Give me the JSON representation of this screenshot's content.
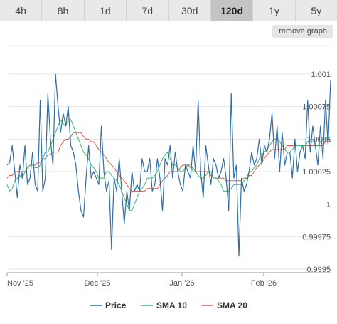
{
  "tabs": [
    {
      "label": "4h",
      "active": false
    },
    {
      "label": "8h",
      "active": false
    },
    {
      "label": "1d",
      "active": false
    },
    {
      "label": "7d",
      "active": false
    },
    {
      "label": "30d",
      "active": false
    },
    {
      "label": "120d",
      "active": true
    },
    {
      "label": "1y",
      "active": false
    },
    {
      "label": "5y",
      "active": false
    }
  ],
  "remove_graph_label": "remove graph",
  "chart_data": {
    "type": "line",
    "x_ticks": [
      "Nov '25",
      "Dec '25",
      "Jan '26",
      "Feb '26"
    ],
    "y_ticks": [
      "1.001",
      "1.00075",
      "1.0005",
      "1.00025",
      "1",
      "0.99975",
      "0.9995"
    ],
    "ylim": [
      0.9995,
      1.001
    ],
    "grid": true,
    "legend_position": "bottom",
    "series": [
      {
        "name": "Price",
        "color": "#2f6ea6",
        "values": [
          1.0003,
          1.00032,
          1.00045,
          1.00025,
          1.00005,
          1.0003,
          1.0002,
          1.00045,
          1.00015,
          1.0002,
          1.0004,
          1.00015,
          1.0001,
          1.0008,
          1.0001,
          1.0002,
          1.00085,
          1.0005,
          1.0003,
          1.001,
          1.00075,
          1.00055,
          1.0007,
          1.0006,
          1.00075,
          1.00045,
          1.0004,
          1.0003,
          1.0001,
          0.99995,
          0.9999,
          1.0002,
          1.00045,
          1.0002,
          1.00025,
          1.0002,
          1.00015,
          1.0006,
          1.00025,
          1.0001,
          1.00018,
          0.99965,
          1.0002,
          1.0001,
          1.00035,
          1.0001,
          0.99985,
          1.0001,
          0.99995,
          1.00025,
          1.0001,
          1.00015,
          1.0001,
          1.00035,
          1.00025,
          1.00025,
          1.00035,
          1.0001,
          1.00015,
          1.00035,
          1.0002,
          0.99995,
          1.00035,
          1.0003,
          1.00045,
          1.0002,
          1.0004,
          1.00025,
          1.00015,
          1.0001,
          1.0003,
          1.00025,
          1.0002,
          1.00045,
          1.00025,
          1.0008,
          1.00025,
          1.00005,
          1.00045,
          1.0003,
          1.00015,
          1.00035,
          1.0003,
          1.0002,
          1.00025,
          1.00035,
          1.0002,
          0.99995,
          1.00085,
          1.0002,
          1.0003,
          0.9996,
          1.0002,
          1.0001,
          1.00015,
          1.00025,
          1.0004,
          1.0003,
          1.00035,
          1.0005,
          1.0003,
          1.00045,
          1.0004,
          1.0005,
          1.0007,
          1.00035,
          1.0006,
          1.00025,
          1.00055,
          1.0003,
          1.0004,
          1.0004,
          1.0002,
          1.0005,
          1.00025,
          1.0004,
          1.00045,
          1.00035,
          1.0008,
          1.0004,
          1.0006,
          1.00045,
          1.0003,
          1.0006,
          1.00035,
          1.0008,
          1.00045,
          1.00095
        ]
      },
      {
        "name": "SMA 10",
        "color": "#3cb86a",
        "values": [
          1.00015,
          1.0001,
          1.00012,
          1.00018,
          1.0002,
          1.00022,
          1.0002,
          1.00025,
          1.00028,
          1.0003,
          1.0003,
          1.00028,
          1.00028,
          1.0003,
          1.00035,
          1.0004,
          1.0004,
          1.00045,
          1.0005,
          1.00055,
          1.0006,
          1.00065,
          1.00062,
          1.0006,
          1.00065,
          1.00065,
          1.0006,
          1.00055,
          1.0005,
          1.00045,
          1.0004,
          1.00038,
          1.00035,
          1.0003,
          1.00028,
          1.00025,
          1.0002,
          1.0002,
          1.0002,
          1.00025,
          1.00025,
          1.00022,
          1.0002,
          1.00018,
          1.00015,
          1.0001,
          1.00005,
          1.0,
          0.99995,
          0.99995,
          1.0,
          1.00005,
          1.0001,
          1.00012,
          1.00015,
          1.0002,
          1.0002,
          1.0002,
          1.00022,
          1.00025,
          1.0003,
          1.00035,
          1.00038,
          1.0004,
          1.00035,
          1.0003,
          1.0003,
          1.00028,
          1.00025,
          1.00025,
          1.00028,
          1.0003,
          1.0003,
          1.00025,
          1.00025,
          1.00022,
          1.0002,
          1.0002,
          1.00022,
          1.00025,
          1.00025,
          1.0002,
          1.0002,
          1.00018,
          1.00015,
          1.0001,
          1.0001,
          1.0001,
          1.00012,
          1.00015,
          1.00015,
          1.00015,
          1.00015,
          1.00018,
          1.0002,
          1.00025,
          1.00025,
          1.00028,
          1.0003,
          1.00035,
          1.00038,
          1.0004,
          1.00042,
          1.00045,
          1.00048,
          1.0005,
          1.0005,
          1.00048,
          1.00045,
          1.00042,
          1.0004,
          1.0004,
          1.00042,
          1.00045,
          1.00045,
          1.00045,
          1.00045,
          1.00045,
          1.00048,
          1.0005,
          1.0005,
          1.00045,
          1.00045,
          1.00048,
          1.0005,
          1.0005,
          1.0005,
          1.00052
        ]
      },
      {
        "name": "SMA 20",
        "color": "#e25a4e",
        "values": [
          1.0002,
          1.00022,
          1.00022,
          1.00025,
          1.00025,
          1.00025,
          1.00025,
          1.00025,
          1.00028,
          1.0003,
          1.0003,
          1.0003,
          1.00032,
          1.00032,
          1.00035,
          1.00035,
          1.00038,
          1.00038,
          1.0004,
          1.0004,
          1.0004,
          1.00045,
          1.00048,
          1.0005,
          1.0005,
          1.00052,
          1.00055,
          1.00055,
          1.00055,
          1.00055,
          1.00052,
          1.0005,
          1.0005,
          1.00048,
          1.00048,
          1.00045,
          1.00042,
          1.0004,
          1.00038,
          1.00035,
          1.00032,
          1.0003,
          1.00028,
          1.00025,
          1.00022,
          1.0002,
          1.00018,
          1.00015,
          1.00012,
          1.0001,
          1.0001,
          1.0001,
          1.0001,
          1.0001,
          1.0001,
          1.00012,
          1.00012,
          1.00012,
          1.00012,
          1.00012,
          1.00015,
          1.00018,
          1.0002,
          1.00022,
          1.00025,
          1.00025,
          1.00025,
          1.00025,
          1.00028,
          1.0003,
          1.0003,
          1.0003,
          1.00028,
          1.00028,
          1.00025,
          1.00025,
          1.00025,
          1.00025,
          1.00025,
          1.00025,
          1.00022,
          1.0002,
          1.0002,
          1.0002,
          1.0002,
          1.0002,
          1.00018,
          1.00018,
          1.00018,
          1.00018,
          1.00018,
          1.00018,
          1.00018,
          1.0002,
          1.0002,
          1.00022,
          1.00022,
          1.00025,
          1.00028,
          1.0003,
          1.00032,
          1.00035,
          1.00038,
          1.0004,
          1.00042,
          1.00042,
          1.00042,
          1.00042,
          1.00042,
          1.00042,
          1.00045,
          1.00045,
          1.00045,
          1.00045,
          1.00045,
          1.00045,
          1.00045,
          1.00045,
          1.00045,
          1.00045,
          1.00045,
          1.00045,
          1.00045,
          1.00045,
          1.00045,
          1.00048,
          1.00048,
          1.00048
        ]
      }
    ]
  }
}
